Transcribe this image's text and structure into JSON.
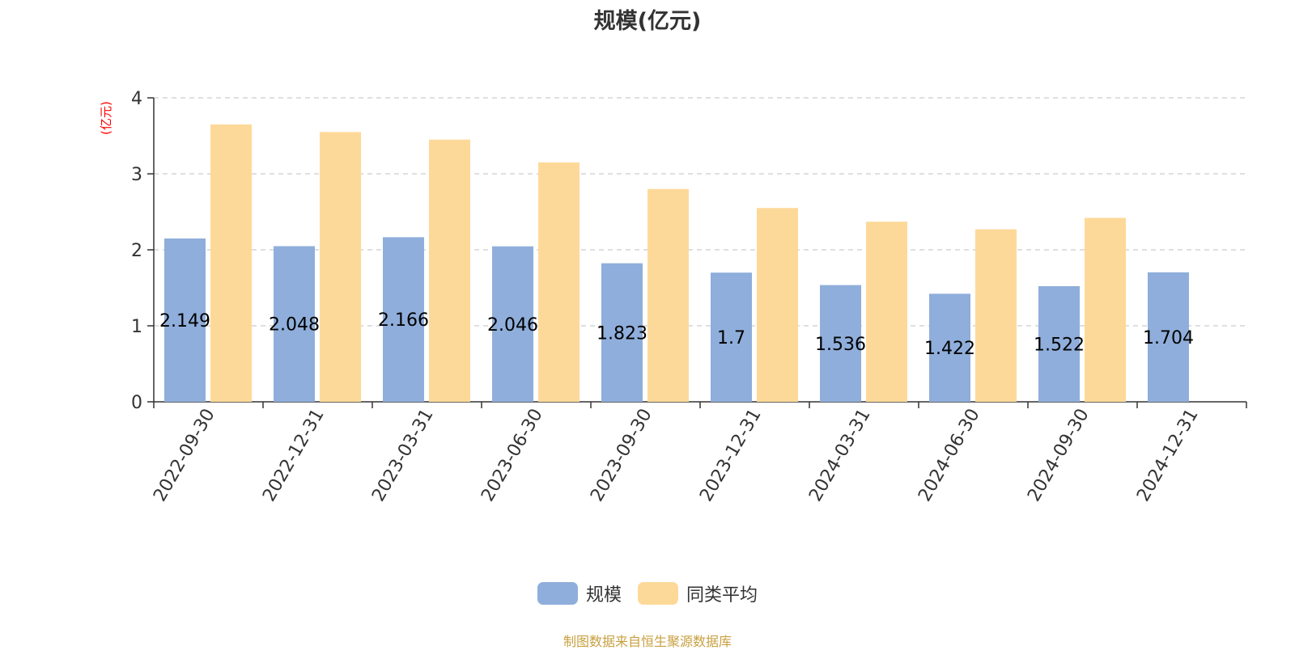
{
  "chart_data": {
    "type": "bar",
    "title": "规模(亿元)",
    "ylabel": "(亿元)",
    "xlabel": "",
    "ylim": [
      0,
      4
    ],
    "yticks": [
      0,
      1,
      2,
      3,
      4
    ],
    "grid": true,
    "legend_position": "bottom",
    "categories": [
      "2022-09-30",
      "2022-12-31",
      "2023-03-31",
      "2023-06-30",
      "2023-09-30",
      "2023-12-31",
      "2024-03-31",
      "2024-06-30",
      "2024-09-30",
      "2024-12-31"
    ],
    "series": [
      {
        "name": "规模",
        "color": "#8faedb",
        "values": [
          2.149,
          2.048,
          2.166,
          2.046,
          1.823,
          1.7,
          1.536,
          1.422,
          1.522,
          1.704
        ],
        "labels": [
          "2.149",
          "2.048",
          "2.166",
          "2.046",
          "1.823",
          "1.7",
          "1.536",
          "1.422",
          "1.522",
          "1.704"
        ]
      },
      {
        "name": "同类平均",
        "color": "#fdd999",
        "values": [
          3.65,
          3.55,
          3.45,
          3.15,
          2.8,
          2.55,
          2.37,
          2.27,
          2.42,
          null
        ]
      }
    ]
  },
  "legend": {
    "items": [
      {
        "label": "规模",
        "color": "#8faedb"
      },
      {
        "label": "同类平均",
        "color": "#fdd999"
      }
    ]
  },
  "source_text": "制图数据来自恒生聚源数据库"
}
